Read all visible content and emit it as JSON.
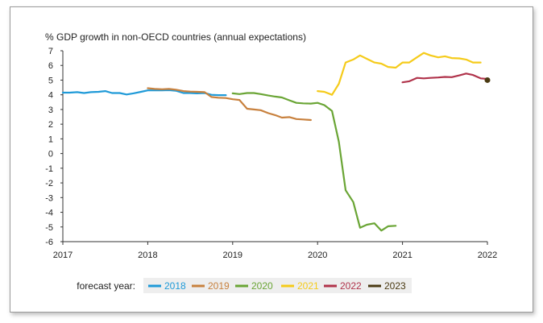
{
  "chart_data": {
    "type": "line",
    "title": "% GDP growth in non-OECD countries (annual expectations)",
    "xlabel": "",
    "ylabel": "",
    "xlim": [
      2017,
      2022
    ],
    "ylim": [
      -6,
      7
    ],
    "x_ticks": [
      2017,
      2018,
      2019,
      2020,
      2021,
      2022
    ],
    "y_ticks": [
      7,
      6,
      5,
      4,
      3,
      2,
      1,
      0,
      -1,
      -2,
      -3,
      -4,
      -5,
      -6
    ],
    "grid": false,
    "legend_position": "bottom",
    "legend_title": "forecast year:",
    "series": [
      {
        "name": "2018",
        "color": "#1f9ad8",
        "points": [
          [
            2017.0,
            4.15
          ],
          [
            2017.08,
            4.15
          ],
          [
            2017.17,
            4.18
          ],
          [
            2017.25,
            4.12
          ],
          [
            2017.33,
            4.18
          ],
          [
            2017.42,
            4.2
          ],
          [
            2017.5,
            4.25
          ],
          [
            2017.58,
            4.12
          ],
          [
            2017.67,
            4.12
          ],
          [
            2017.75,
            4.02
          ],
          [
            2017.83,
            4.1
          ],
          [
            2017.92,
            4.2
          ],
          [
            2018.0,
            4.3
          ],
          [
            2018.08,
            4.3
          ],
          [
            2018.17,
            4.3
          ],
          [
            2018.25,
            4.32
          ],
          [
            2018.33,
            4.28
          ],
          [
            2018.42,
            4.12
          ],
          [
            2018.5,
            4.12
          ],
          [
            2018.58,
            4.1
          ],
          [
            2018.67,
            4.12
          ],
          [
            2018.75,
            4.0
          ],
          [
            2018.83,
            3.98
          ],
          [
            2018.92,
            3.98
          ]
        ]
      },
      {
        "name": "2019",
        "color": "#c8813e",
        "points": [
          [
            2018.0,
            4.45
          ],
          [
            2018.08,
            4.4
          ],
          [
            2018.17,
            4.38
          ],
          [
            2018.25,
            4.4
          ],
          [
            2018.33,
            4.35
          ],
          [
            2018.42,
            4.25
          ],
          [
            2018.5,
            4.22
          ],
          [
            2018.58,
            4.2
          ],
          [
            2018.67,
            4.18
          ],
          [
            2018.75,
            3.85
          ],
          [
            2018.83,
            3.8
          ],
          [
            2018.92,
            3.78
          ],
          [
            2019.0,
            3.7
          ],
          [
            2019.08,
            3.65
          ],
          [
            2019.17,
            3.05
          ],
          [
            2019.25,
            3.0
          ],
          [
            2019.33,
            2.95
          ],
          [
            2019.42,
            2.75
          ],
          [
            2019.5,
            2.62
          ],
          [
            2019.58,
            2.45
          ],
          [
            2019.67,
            2.48
          ],
          [
            2019.75,
            2.35
          ],
          [
            2019.83,
            2.32
          ],
          [
            2019.92,
            2.28
          ]
        ]
      },
      {
        "name": "2020",
        "color": "#6aa535",
        "points": [
          [
            2019.0,
            4.1
          ],
          [
            2019.08,
            4.05
          ],
          [
            2019.17,
            4.12
          ],
          [
            2019.25,
            4.12
          ],
          [
            2019.33,
            4.05
          ],
          [
            2019.42,
            3.95
          ],
          [
            2019.5,
            3.88
          ],
          [
            2019.58,
            3.82
          ],
          [
            2019.67,
            3.62
          ],
          [
            2019.75,
            3.45
          ],
          [
            2019.83,
            3.42
          ],
          [
            2019.92,
            3.4
          ],
          [
            2020.0,
            3.45
          ],
          [
            2020.08,
            3.3
          ],
          [
            2020.17,
            2.9
          ],
          [
            2020.25,
            0.8
          ],
          [
            2020.33,
            -2.5
          ],
          [
            2020.42,
            -3.3
          ],
          [
            2020.5,
            -5.05
          ],
          [
            2020.58,
            -4.85
          ],
          [
            2020.67,
            -4.75
          ],
          [
            2020.75,
            -5.25
          ],
          [
            2020.83,
            -4.95
          ],
          [
            2020.92,
            -4.92
          ]
        ]
      },
      {
        "name": "2021",
        "color": "#f5cb1a",
        "points": [
          [
            2020.0,
            4.25
          ],
          [
            2020.08,
            4.2
          ],
          [
            2020.17,
            4.0
          ],
          [
            2020.25,
            4.75
          ],
          [
            2020.33,
            6.2
          ],
          [
            2020.42,
            6.4
          ],
          [
            2020.5,
            6.68
          ],
          [
            2020.58,
            6.45
          ],
          [
            2020.67,
            6.2
          ],
          [
            2020.75,
            6.12
          ],
          [
            2020.83,
            5.9
          ],
          [
            2020.92,
            5.85
          ],
          [
            2021.0,
            6.2
          ],
          [
            2021.08,
            6.2
          ],
          [
            2021.17,
            6.55
          ],
          [
            2021.25,
            6.85
          ],
          [
            2021.33,
            6.68
          ],
          [
            2021.42,
            6.55
          ],
          [
            2021.5,
            6.62
          ],
          [
            2021.58,
            6.5
          ],
          [
            2021.67,
            6.48
          ],
          [
            2021.75,
            6.4
          ],
          [
            2021.83,
            6.2
          ],
          [
            2021.92,
            6.2
          ]
        ]
      },
      {
        "name": "2022",
        "color": "#b0334b",
        "points": [
          [
            2021.0,
            4.85
          ],
          [
            2021.08,
            4.92
          ],
          [
            2021.17,
            5.15
          ],
          [
            2021.25,
            5.12
          ],
          [
            2021.33,
            5.15
          ],
          [
            2021.42,
            5.18
          ],
          [
            2021.5,
            5.22
          ],
          [
            2021.58,
            5.2
          ],
          [
            2021.67,
            5.32
          ],
          [
            2021.75,
            5.45
          ],
          [
            2021.83,
            5.35
          ],
          [
            2021.92,
            5.12
          ],
          [
            2022.0,
            5.08
          ]
        ]
      },
      {
        "name": "2023",
        "color": "#4a3a12",
        "points": [
          [
            2022.0,
            5.0
          ]
        ]
      }
    ]
  }
}
